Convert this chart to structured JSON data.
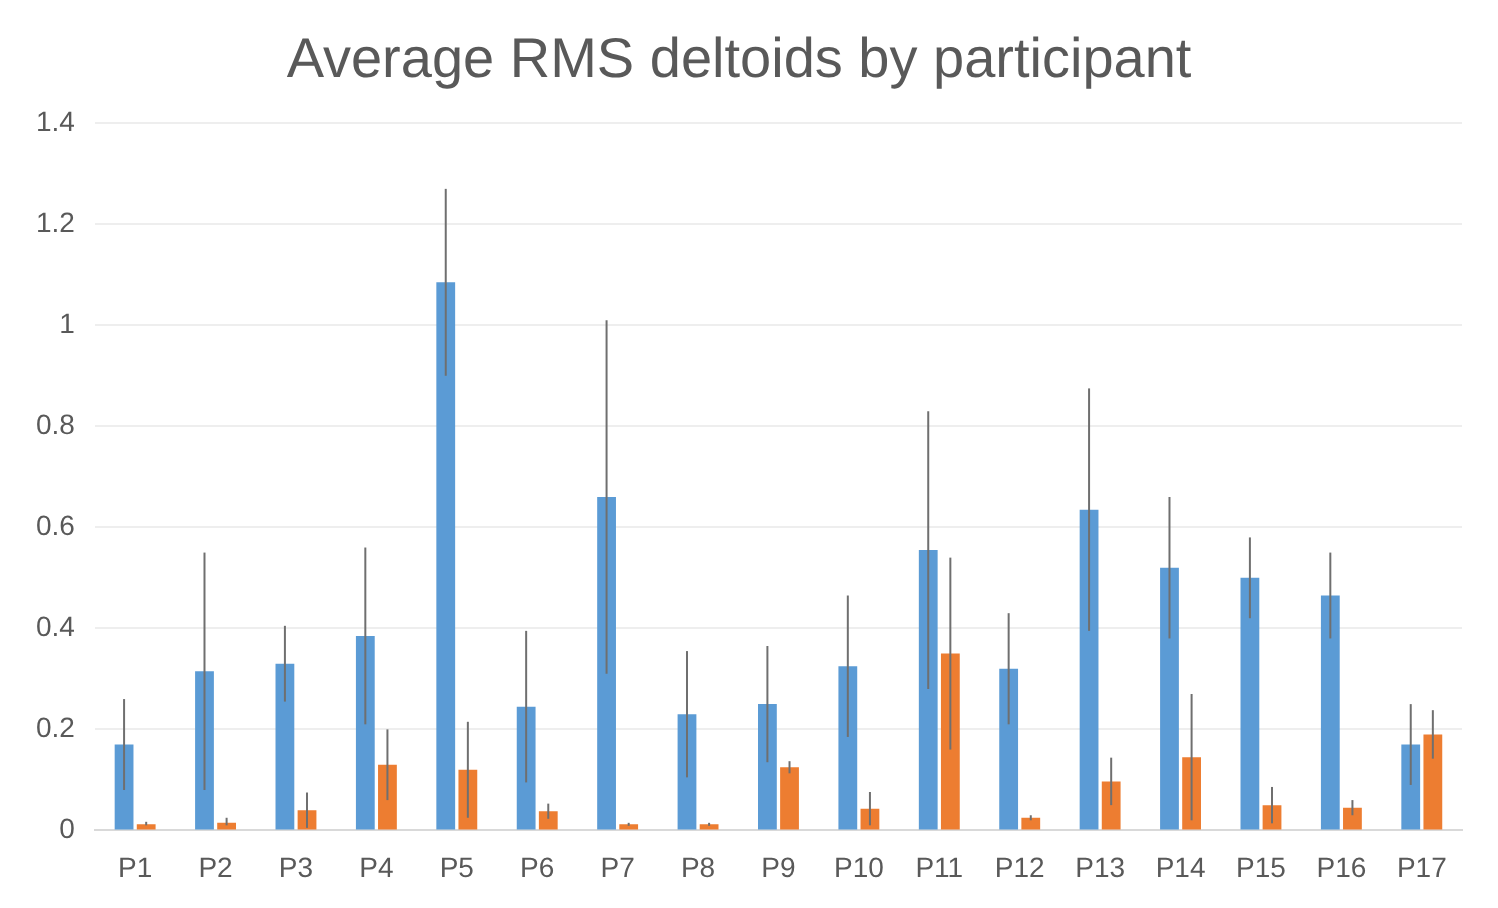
{
  "chart_data": {
    "type": "bar",
    "title": "Average RMS deltoids by participant",
    "categories": [
      "P1",
      "P2",
      "P3",
      "P4",
      "P5",
      "P6",
      "P7",
      "P8",
      "P9",
      "P10",
      "P11",
      "P12",
      "P13",
      "P14",
      "P15",
      "P16",
      "P17"
    ],
    "series": [
      {
        "color": "#5b9bd5",
        "values": [
          0.17,
          0.315,
          0.33,
          0.385,
          1.085,
          0.245,
          0.66,
          0.23,
          0.25,
          0.325,
          0.555,
          0.32,
          0.635,
          0.52,
          0.5,
          0.465,
          0.17
        ],
        "errors": [
          0.09,
          0.235,
          0.075,
          0.175,
          0.185,
          0.15,
          0.35,
          0.125,
          0.115,
          0.14,
          0.275,
          0.11,
          0.24,
          0.14,
          0.08,
          0.085,
          0.08
        ]
      },
      {
        "color": "#ed7d31",
        "values": [
          0.012,
          0.015,
          0.04,
          0.13,
          0.12,
          0.038,
          0.012,
          0.012,
          0.125,
          0.043,
          0.35,
          0.025,
          0.097,
          0.145,
          0.05,
          0.045,
          0.19
        ],
        "errors": [
          [
            0.01,
            0.017
          ],
          [
            0.01,
            0.025
          ],
          0.035,
          0.07,
          0.095,
          0.015,
          0.003,
          0.003,
          0.012,
          0.033,
          0.19,
          0.005,
          0.047,
          0.125,
          0.036,
          0.015,
          0.048
        ]
      }
    ],
    "ylim": [
      0,
      1.4
    ],
    "yticks": [
      0,
      0.2,
      0.4,
      0.6,
      0.8,
      1,
      1.2,
      1.4
    ],
    "grid": "y",
    "legend": false
  }
}
